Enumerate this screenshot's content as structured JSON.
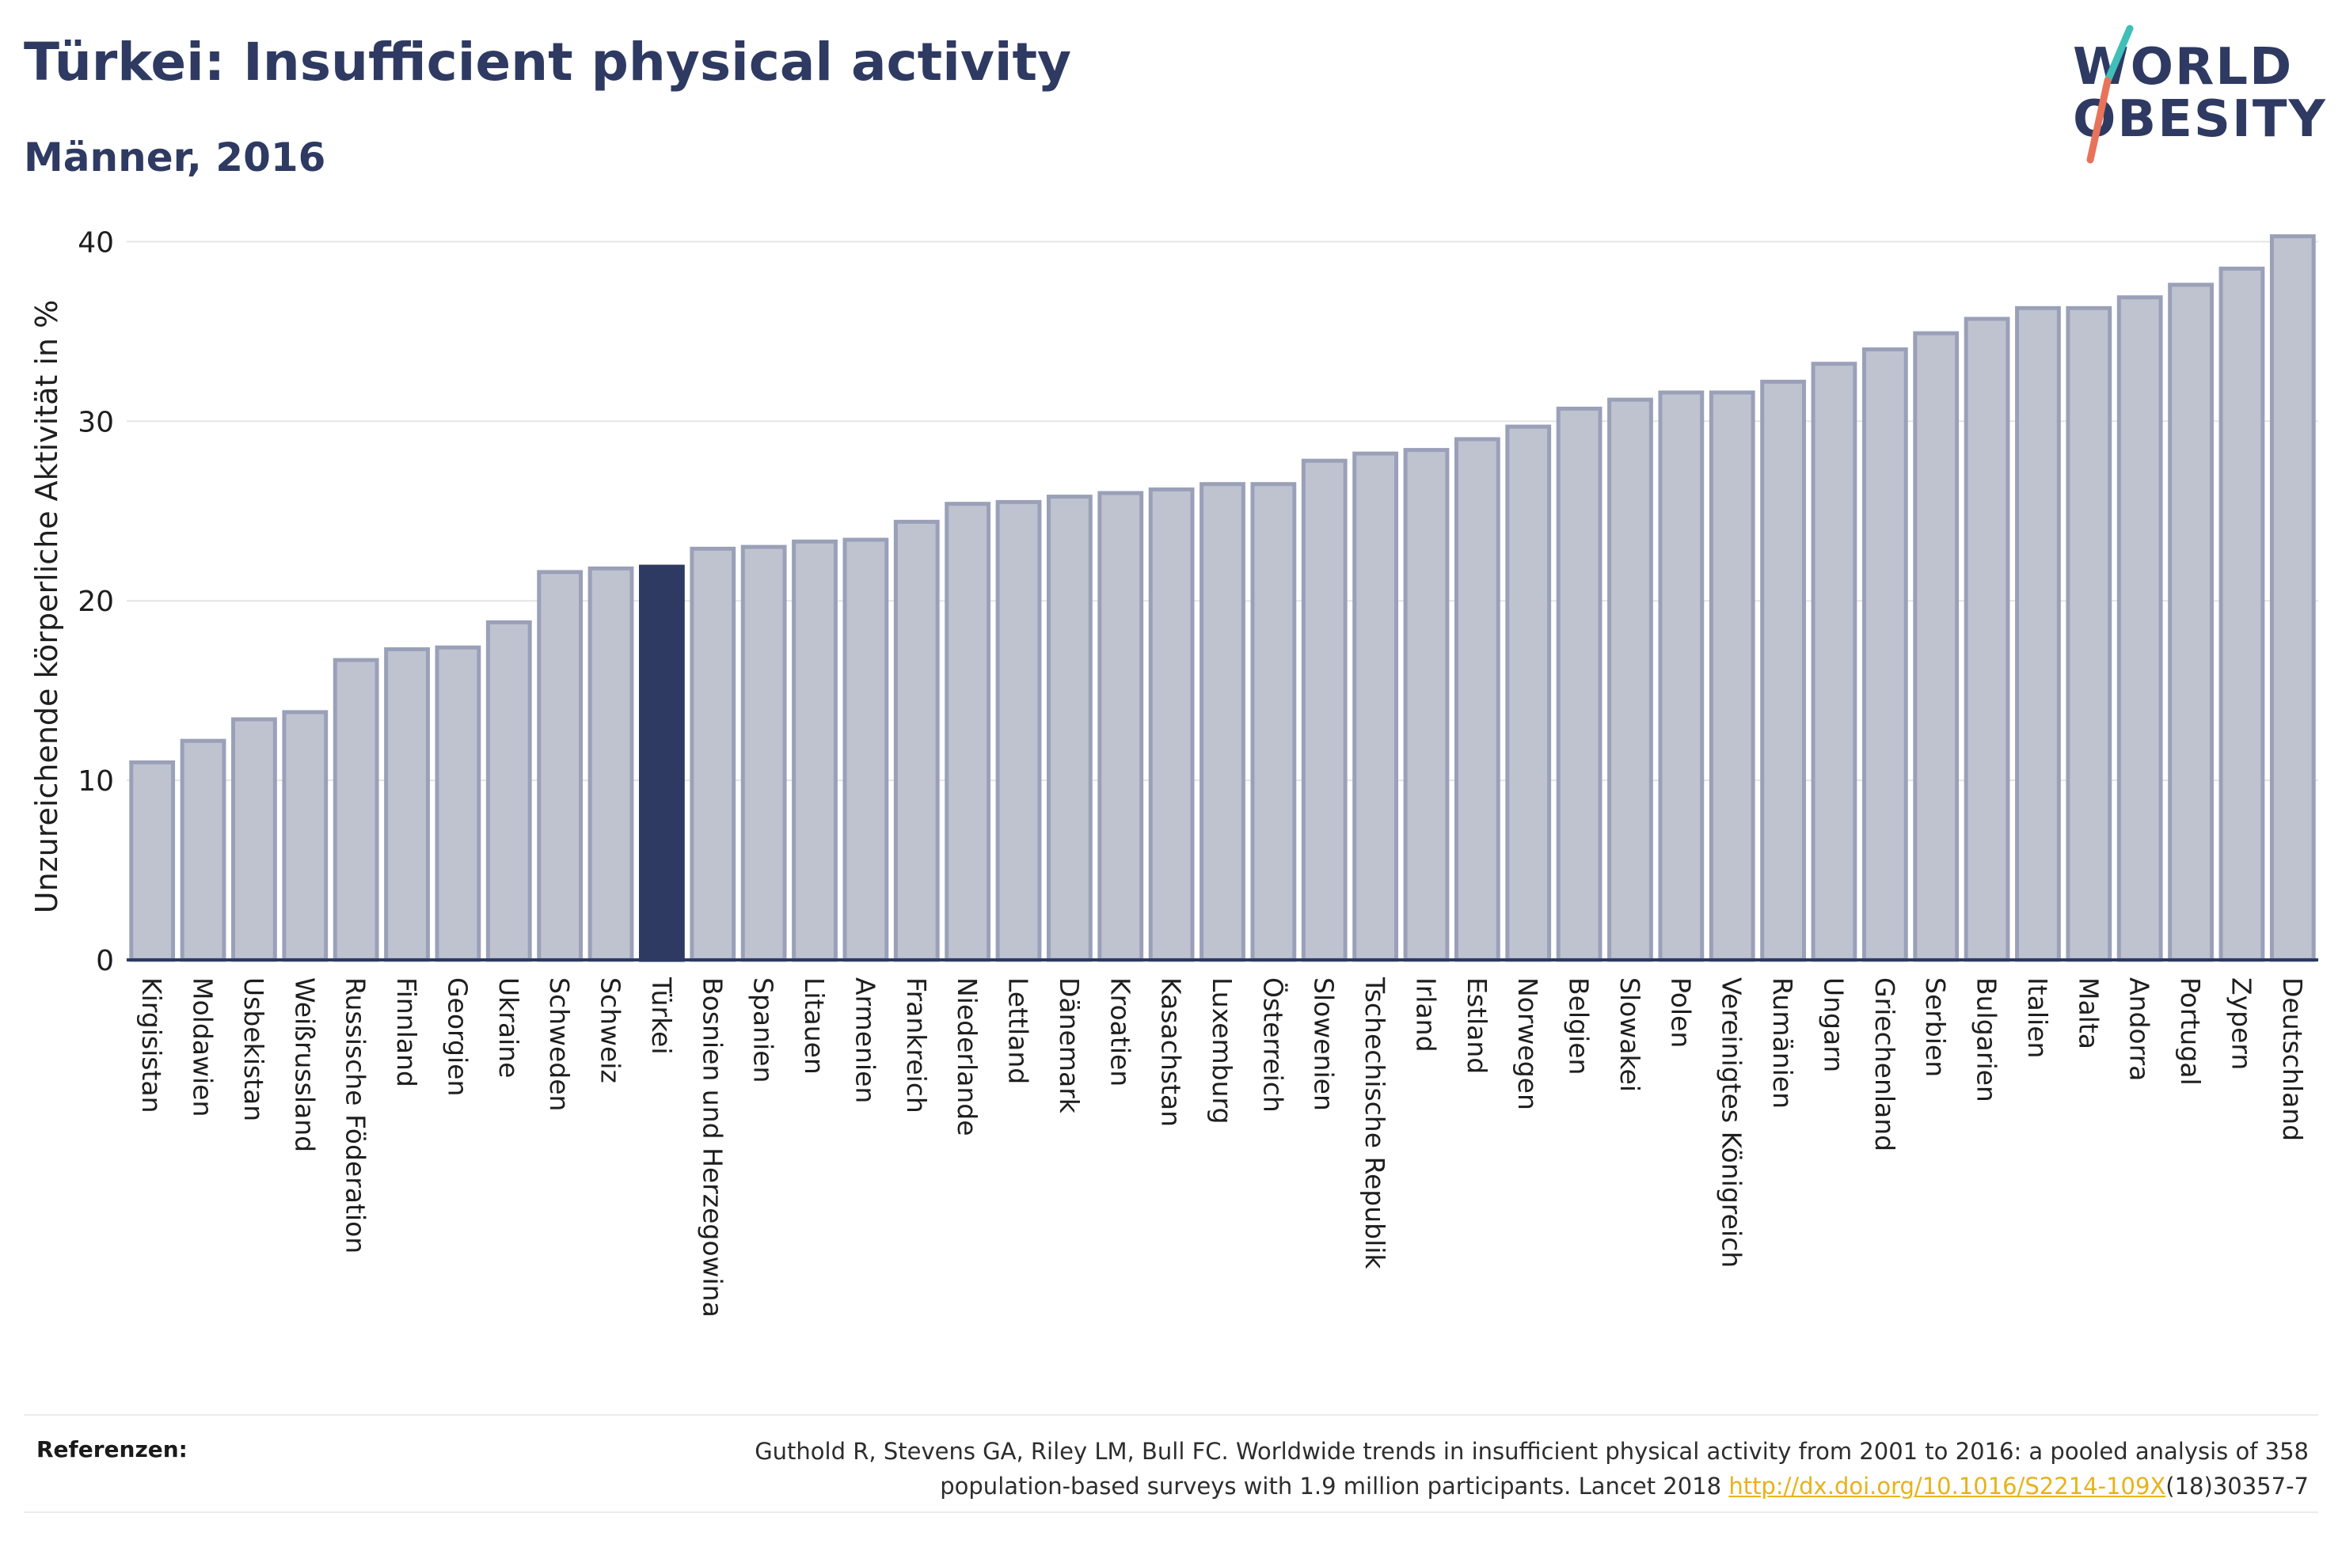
{
  "header": {
    "title": "Türkei: Insufficient physical activity",
    "subtitle": "Männer, 2016"
  },
  "logo": {
    "line1": "WORLD",
    "line2": "OBESITY",
    "accent_teal": "#3fbfb8",
    "accent_coral": "#e8735a"
  },
  "colors": {
    "bar_default": "#bfc3d0",
    "bar_border": "#9aa0b8",
    "bar_highlight": "#2e3a62",
    "grid": "#e5e5e5",
    "axis_line": "#2e3a62"
  },
  "chart_data": {
    "type": "bar",
    "ylabel": "Unzureichende körperliche Aktivität in %",
    "ylim": [
      0,
      42
    ],
    "yticks": [
      0,
      10,
      20,
      30,
      40
    ],
    "highlight": "Türkei",
    "categories": [
      "Kirgisistan",
      "Moldawien",
      "Usbekistan",
      "Weißrussland",
      "Russische Föderation",
      "Finnland",
      "Georgien",
      "Ukraine",
      "Schweden",
      "Schweiz",
      "Türkei",
      "Bosnien und Herzegowina",
      "Spanien",
      "Litauen",
      "Armenien",
      "Frankreich",
      "Niederlande",
      "Lettland",
      "Dänemark",
      "Kroatien",
      "Kasachstan",
      "Luxemburg",
      "Österreich",
      "Slowenien",
      "Tschechische Republik",
      "Irland",
      "Estland",
      "Norwegen",
      "Belgien",
      "Slowakei",
      "Polen",
      "Vereinigtes Königreich",
      "Rumänien",
      "Ungarn",
      "Griechenland",
      "Serbien",
      "Bulgarien",
      "Italien",
      "Malta",
      "Andorra",
      "Portugal",
      "Zypern",
      "Deutschland"
    ],
    "values": [
      11.0,
      12.2,
      13.4,
      13.8,
      16.7,
      17.3,
      17.4,
      18.8,
      21.6,
      21.8,
      21.9,
      22.9,
      23.0,
      23.3,
      23.4,
      24.4,
      25.4,
      25.5,
      25.8,
      26.0,
      26.2,
      26.5,
      26.5,
      27.8,
      28.2,
      28.4,
      29.0,
      29.7,
      30.7,
      31.2,
      31.6,
      31.6,
      32.2,
      33.2,
      34.0,
      34.9,
      35.7,
      36.3,
      36.3,
      36.9,
      37.6,
      38.5,
      40.3
    ]
  },
  "references": {
    "label": "Referenzen:",
    "line1": "Guthold R, Stevens GA, Riley LM, Bull FC. Worldwide trends in insufficient physical activity from 2001 to 2016: a pooled analysis of 358",
    "line2_prefix": "population-based surveys with 1.9 million participants. Lancet 2018 ",
    "link_text": "http://dx.doi.org/10.1016/S2214-109X",
    "line2_suffix": "(18)30357-7"
  }
}
